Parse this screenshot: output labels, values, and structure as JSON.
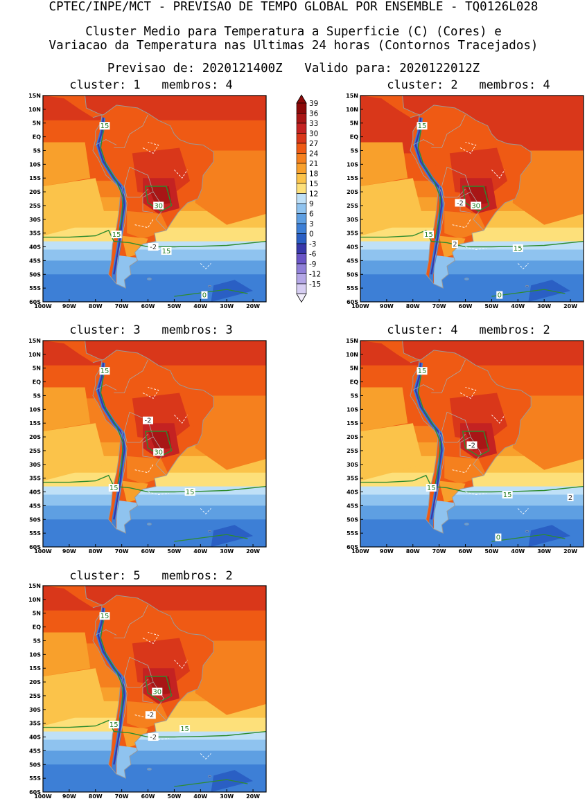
{
  "header": {
    "line1": "CPTEC/INPE/MCT - PREVISAO DE TEMPO GLOBAL POR ENSEMBLE - TQ0126L028",
    "line2": "Cluster Medio para Temperatura a Superficie (C) (Cores) e",
    "line3": "Variacao da Temperatura nas Ultimas 24 horas (Contornos Tracejados)",
    "line4": "Previsao de: 2020121400Z   Valido para: 2020122012Z"
  },
  "axes": {
    "lat_labels": [
      "15N",
      "10N",
      "5N",
      "EQ",
      "5S",
      "10S",
      "15S",
      "20S",
      "25S",
      "30S",
      "35S",
      "40S",
      "45S",
      "50S",
      "55S",
      "60S"
    ],
    "lon_labels": [
      "100W",
      "90W",
      "80W",
      "70W",
      "60W",
      "50W",
      "40W",
      "30W",
      "20W"
    ]
  },
  "colorbar": {
    "labels": [
      "39",
      "36",
      "33",
      "30",
      "27",
      "24",
      "21",
      "18",
      "15",
      "12",
      "9",
      "6",
      "3",
      "0",
      "-3",
      "-6",
      "-9",
      "-12",
      "-15"
    ],
    "colors": [
      "#8b0a0a",
      "#a81616",
      "#c42222",
      "#d9371a",
      "#ef5a14",
      "#f5801e",
      "#f8a02c",
      "#fbc34a",
      "#fde07a",
      "#bfe0f7",
      "#8fc3ef",
      "#5e9fe2",
      "#3d7fd6",
      "#2a5fc4",
      "#3838aa",
      "#6a55c6",
      "#9080d8",
      "#b4a7e6",
      "#d6cdf2"
    ]
  },
  "panels": [
    {
      "title": "cluster: 1   membros: 4",
      "labels": [
        "15",
        "15",
        "15",
        "30",
        "-2",
        "0"
      ]
    },
    {
      "title": "cluster: 2   membros: 4",
      "labels": [
        "15",
        "15",
        "15",
        "30",
        "-2",
        "2",
        "0"
      ]
    },
    {
      "title": "cluster: 3   membros: 3",
      "labels": [
        "15",
        "15",
        "15",
        "-2",
        "30"
      ]
    },
    {
      "title": "cluster: 4   membros: 2",
      "labels": [
        "15",
        "15",
        "15",
        "-2",
        "2",
        "0"
      ]
    },
    {
      "title": "cluster: 5   membros: 2",
      "labels": [
        "15",
        "15",
        "15",
        "30",
        "-2",
        "-2"
      ]
    }
  ]
}
